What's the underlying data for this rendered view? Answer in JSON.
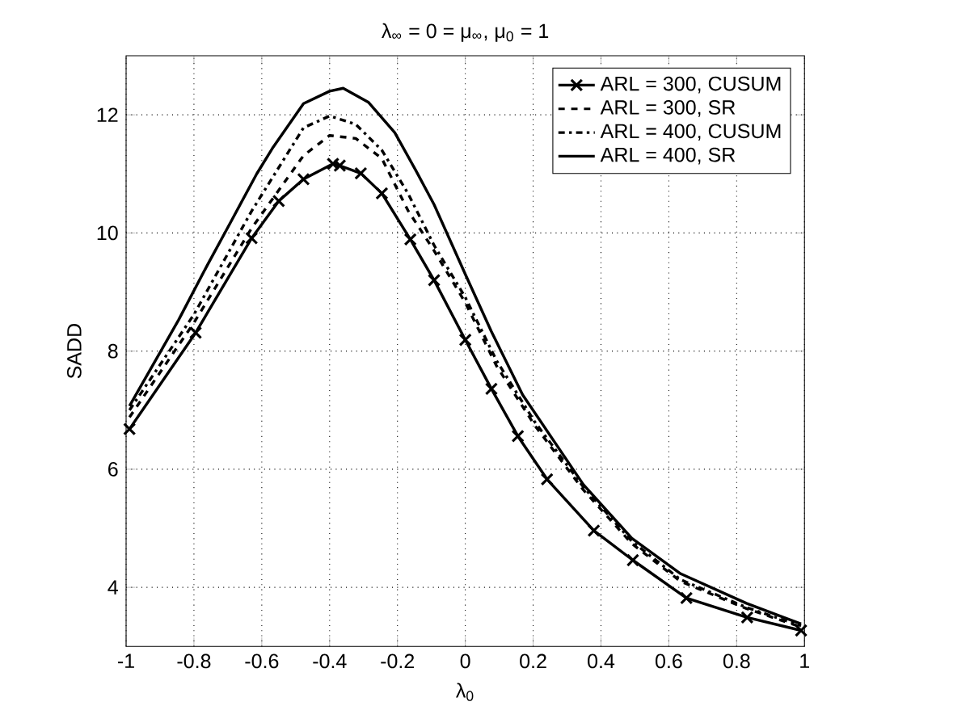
{
  "chart_data": {
    "type": "line",
    "title": "λ$_{∞}$ = 0 = μ$_{∞}$, μ$_{0}$ = 1",
    "xlabel": "λ$_{0}$",
    "ylabel": "SADD",
    "xlim": [
      -1,
      1
    ],
    "ylim": [
      3,
      13
    ],
    "xticks": [
      -1,
      -0.8,
      -0.6,
      -0.4,
      -0.2,
      0,
      0.2,
      0.4,
      0.6,
      0.8,
      1
    ],
    "yticks": [
      4,
      6,
      8,
      10,
      12
    ],
    "grid": true,
    "legend": "top right",
    "series": [
      {
        "name": "ARL = 300, CUSUM",
        "color": "#000000",
        "marker": "cross",
        "line_style": "solid",
        "x": [
          -0.99,
          -0.795,
          -0.63,
          -0.55,
          -0.477,
          -0.39,
          -0.37,
          -0.308,
          -0.246,
          -0.162,
          -0.092,
          0,
          0.077,
          0.155,
          0.241,
          0.379,
          0.494,
          0.652,
          0.831,
          0.99
        ],
        "values": [
          6.68,
          8.31,
          9.91,
          10.54,
          10.91,
          11.17,
          11.14,
          11.01,
          10.67,
          9.89,
          9.2,
          8.19,
          7.36,
          6.56,
          5.83,
          4.96,
          4.46,
          3.82,
          3.49,
          3.27
        ]
      },
      {
        "name": "ARL = 300, SR",
        "color": "#000000",
        "marker": "none",
        "line_style": "dashed",
        "x": [
          -0.99,
          -0.8,
          -0.63,
          -0.477,
          -0.4,
          -0.323,
          -0.246,
          -0.169,
          -0.092,
          0,
          0.092,
          0.205,
          0.348,
          0.491,
          0.635,
          0.829,
          0.99
        ],
        "values": [
          6.88,
          8.48,
          10.08,
          11.31,
          11.65,
          11.6,
          11.26,
          10.38,
          9.7,
          8.82,
          7.75,
          6.74,
          5.65,
          4.74,
          4.1,
          3.64,
          3.33
        ]
      },
      {
        "name": "ARL = 400, CUSUM",
        "color": "#000000",
        "marker": "none",
        "line_style": "dashdot",
        "x": [
          -0.99,
          -0.8,
          -0.63,
          -0.477,
          -0.4,
          -0.323,
          -0.246,
          -0.169,
          -0.092,
          0,
          0.092,
          0.205,
          0.348,
          0.491,
          0.635,
          0.829,
          0.99
        ],
        "values": [
          7.0,
          8.62,
          10.37,
          11.78,
          11.98,
          11.84,
          11.4,
          10.67,
          9.79,
          8.91,
          7.84,
          6.8,
          5.7,
          4.78,
          4.13,
          3.66,
          3.35
        ]
      },
      {
        "name": "ARL = 400, SR",
        "color": "#000000",
        "marker": "none",
        "line_style": "solid",
        "x": [
          -0.99,
          -0.845,
          -0.761,
          -0.692,
          -0.615,
          -0.569,
          -0.477,
          -0.4,
          -0.36,
          -0.285,
          -0.208,
          -0.146,
          -0.092,
          0,
          0.077,
          0.169,
          0.348,
          0.491,
          0.635,
          0.829,
          0.99
        ],
        "values": [
          7.07,
          8.53,
          9.45,
          10.18,
          11.0,
          11.43,
          12.19,
          12.4,
          12.45,
          12.21,
          11.7,
          11.06,
          10.48,
          9.3,
          8.33,
          7.26,
          5.74,
          4.83,
          4.23,
          3.73,
          3.38
        ]
      }
    ]
  }
}
